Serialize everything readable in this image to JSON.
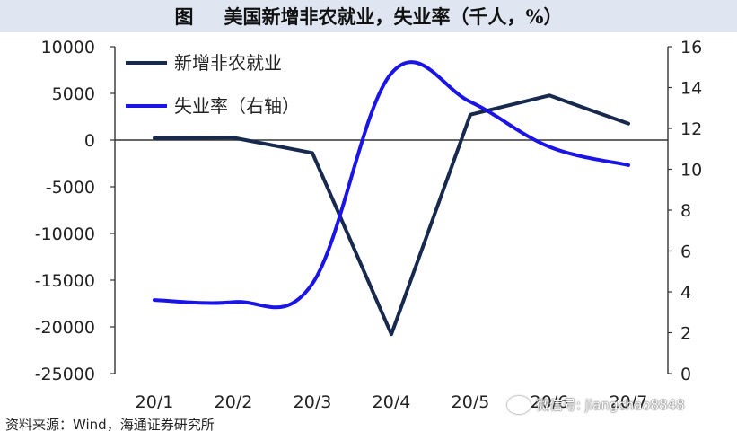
{
  "figure": {
    "label": "图",
    "title": "美国新增非农就业，失业率（千人，%）",
    "source": "资料来源：Wind，海通证券研究所",
    "watermark": "微信号: jiangchao8848"
  },
  "chart_data": {
    "type": "line",
    "categories": [
      "20/1",
      "20/2",
      "20/3",
      "20/4",
      "20/5",
      "20/6",
      "20/7"
    ],
    "series": [
      {
        "name": "新增非农就业",
        "axis": "left",
        "color": "#17294d",
        "values": [
          214,
          251,
          -1373,
          -20787,
          2725,
          4781,
          1763
        ]
      },
      {
        "name": "失业率（右轴）",
        "axis": "right",
        "color": "#1a14e6",
        "values": [
          3.6,
          3.5,
          4.4,
          14.7,
          13.3,
          11.1,
          10.2
        ]
      }
    ],
    "left_axis": {
      "ylim": [
        -25000,
        10000
      ],
      "ticks": [
        10000,
        5000,
        0,
        -5000,
        -10000,
        -15000,
        -20000,
        -25000
      ]
    },
    "right_axis": {
      "ylim": [
        0,
        16
      ],
      "ticks": [
        16,
        14,
        12,
        10,
        8,
        6,
        4,
        2,
        0
      ]
    },
    "legend_position": "top-left",
    "grid": false
  }
}
